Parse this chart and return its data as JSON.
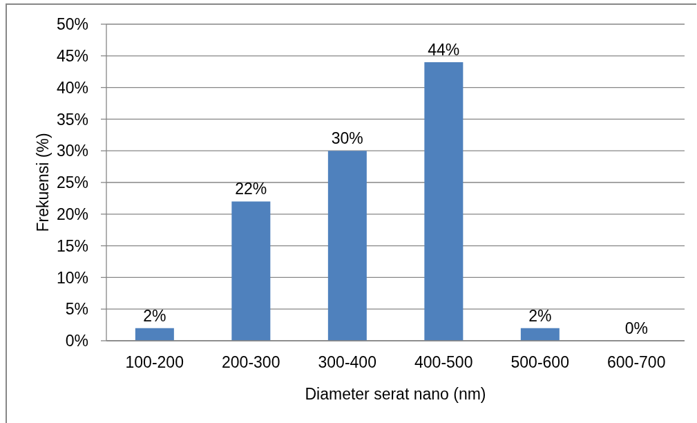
{
  "chart_data": {
    "type": "bar",
    "xlabel": "Diameter serat nano (nm)",
    "ylabel": "Frekuensi (%)",
    "categories": [
      "100-200",
      "200-300",
      "300-400",
      "400-500",
      "500-600",
      "600-700"
    ],
    "values": [
      2,
      22,
      30,
      44,
      2,
      0
    ],
    "color": "#4f81bd",
    "value_labels": [
      "2%",
      "22%",
      "30%",
      "44%",
      "2%",
      "0%"
    ],
    "ylim": [
      0,
      50
    ],
    "yticks": [
      {
        "value": 0,
        "label": "0%"
      },
      {
        "value": 5,
        "label": "5%"
      },
      {
        "value": 10,
        "label": "10%"
      },
      {
        "value": 15,
        "label": "15%"
      },
      {
        "value": 20,
        "label": "20%"
      },
      {
        "value": 25,
        "label": "25%"
      },
      {
        "value": 30,
        "label": "30%"
      },
      {
        "value": 35,
        "label": "35%"
      },
      {
        "value": 40,
        "label": "40%"
      },
      {
        "value": 45,
        "label": "45%"
      },
      {
        "value": 50,
        "label": "50%"
      }
    ],
    "grid": "y"
  }
}
